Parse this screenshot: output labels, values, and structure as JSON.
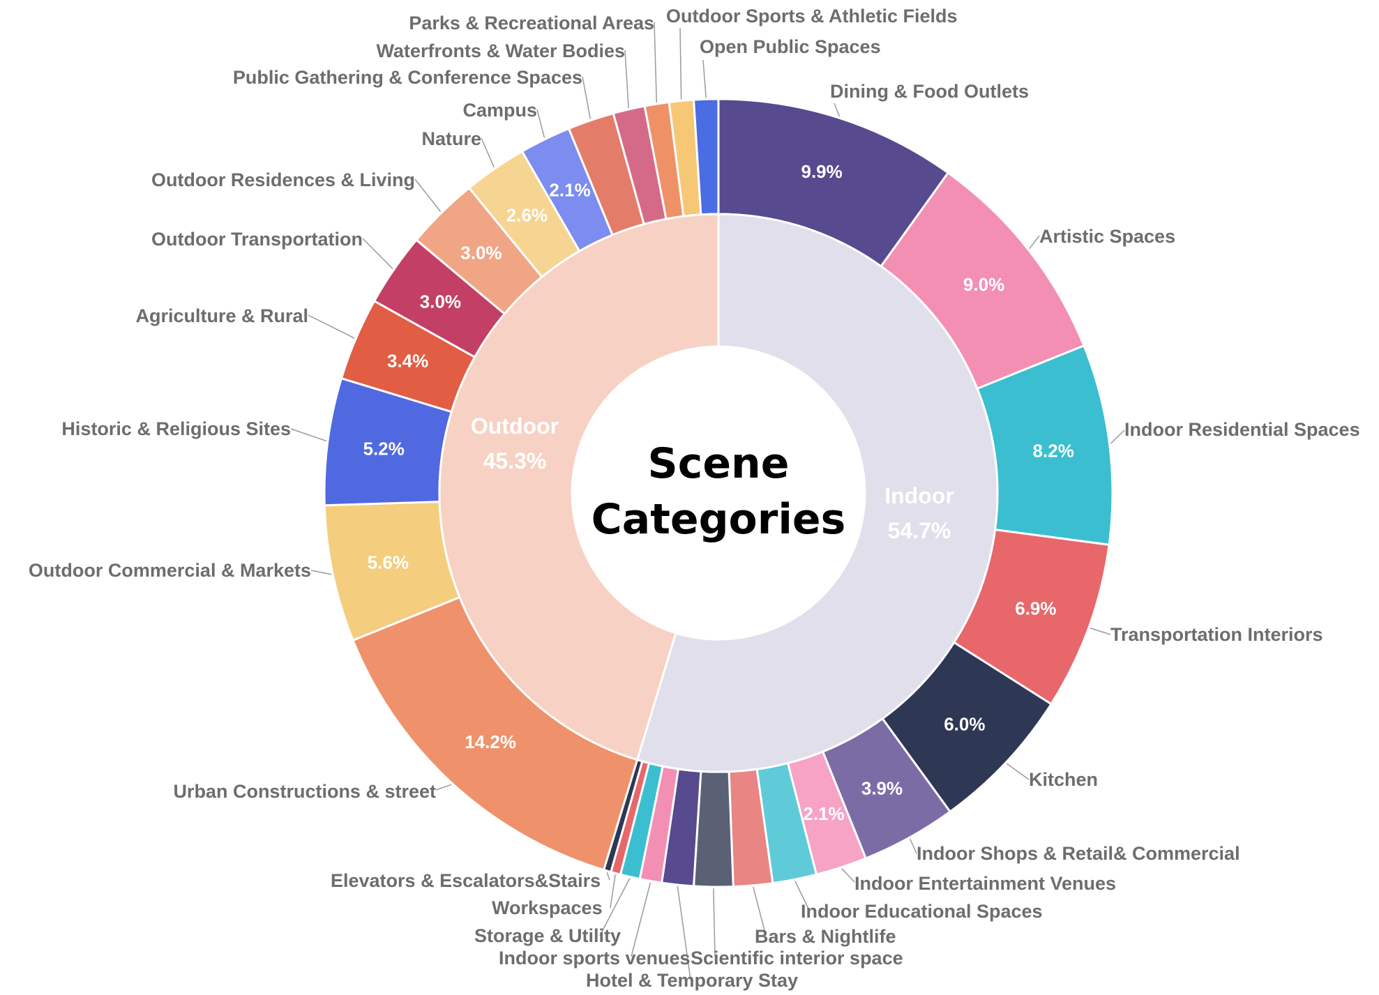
{
  "chart_data": {
    "type": "pie",
    "title_lines": [
      "Scene",
      "Categories"
    ],
    "inner": [
      {
        "name": "Indoor",
        "label": "54.7%",
        "value": 54.7,
        "color": "#e1dfeb"
      },
      {
        "name": "Outdoor",
        "label": "45.3%",
        "value": 45.3,
        "color": "#f7d1c3"
      }
    ],
    "outer": [
      {
        "name": "Dining & Food Outlets",
        "value": 9.9,
        "label": "9.9%",
        "color": "#574a8e"
      },
      {
        "name": "Artistic Spaces",
        "value": 9.0,
        "label": "9.0%",
        "color": "#f48fb4"
      },
      {
        "name": "Indoor Residential Spaces",
        "value": 8.2,
        "label": "8.2%",
        "color": "#3bbfd0"
      },
      {
        "name": "Transportation Interiors",
        "value": 6.9,
        "label": "6.9%",
        "color": "#e8676b"
      },
      {
        "name": "Kitchen",
        "value": 6.0,
        "label": "6.0%",
        "color": "#2e3753"
      },
      {
        "name": "Indoor Shops & Retail& Commercial",
        "value": 3.9,
        "label": "3.9%",
        "color": "#7c6ca6"
      },
      {
        "name": "Indoor Entertainment Venues",
        "value": 2.1,
        "label": "2.1%",
        "color": "#f6a3c6"
      },
      {
        "name": "Indoor Educational Spaces",
        "value": 1.8,
        "label": "",
        "color": "#5fcbd9"
      },
      {
        "name": "Bars & Nightlife",
        "value": 1.6,
        "label": "",
        "color": "#e98583"
      },
      {
        "name": "Scientific interior space",
        "value": 1.6,
        "label": "",
        "color": "#5a6175"
      },
      {
        "name": "Hotel & Temporary Stay",
        "value": 1.3,
        "label": "",
        "color": "#574a8e"
      },
      {
        "name": "Indoor sports venues",
        "value": 0.9,
        "label": "",
        "color": "#f48fb4"
      },
      {
        "name": "Storage & Utility",
        "value": 0.8,
        "label": "",
        "color": "#3bbfd0"
      },
      {
        "name": "Workspaces",
        "value": 0.4,
        "label": "",
        "color": "#e8676b"
      },
      {
        "name": "Elevators & Escalators&Stairs",
        "value": 0.3,
        "label": "",
        "color": "#2e3753"
      },
      {
        "name": "Urban Constructions & street",
        "value": 14.2,
        "label": "14.2%",
        "color": "#ef916b"
      },
      {
        "name": "Outdoor Commercial & Markets",
        "value": 5.6,
        "label": "5.6%",
        "color": "#f4cd7e"
      },
      {
        "name": "Historic & Religious Sites",
        "value": 5.2,
        "label": "5.2%",
        "color": "#5169e0"
      },
      {
        "name": "Agriculture & Rural",
        "value": 3.4,
        "label": "3.4%",
        "color": "#e15d44"
      },
      {
        "name": "Outdoor Transportation",
        "value": 3.0,
        "label": "3.0%",
        "color": "#c43f65"
      },
      {
        "name": "Outdoor Residences & Living",
        "value": 3.0,
        "label": "3.0%",
        "color": "#f0a685"
      },
      {
        "name": "Nature",
        "value": 2.6,
        "label": "2.6%",
        "color": "#f6d491"
      },
      {
        "name": "Campus",
        "value": 2.1,
        "label": "2.1%",
        "color": "#7c8def"
      },
      {
        "name": "Public Gathering & Conference Spaces",
        "value": 1.9,
        "label": "",
        "color": "#e47c6a"
      },
      {
        "name": "Waterfronts & Water Bodies",
        "value": 1.3,
        "label": "",
        "color": "#d56a88"
      },
      {
        "name": "Parks & Recreational Areas",
        "value": 1.0,
        "label": "",
        "color": "#ef9166"
      },
      {
        "name": "Outdoor Sports & Athletic Fields",
        "value": 1.0,
        "label": "",
        "color": "#f6c876"
      },
      {
        "name": "Open Public Spaces",
        "value": 1.0,
        "label": "",
        "color": "#4a6de3"
      }
    ]
  }
}
